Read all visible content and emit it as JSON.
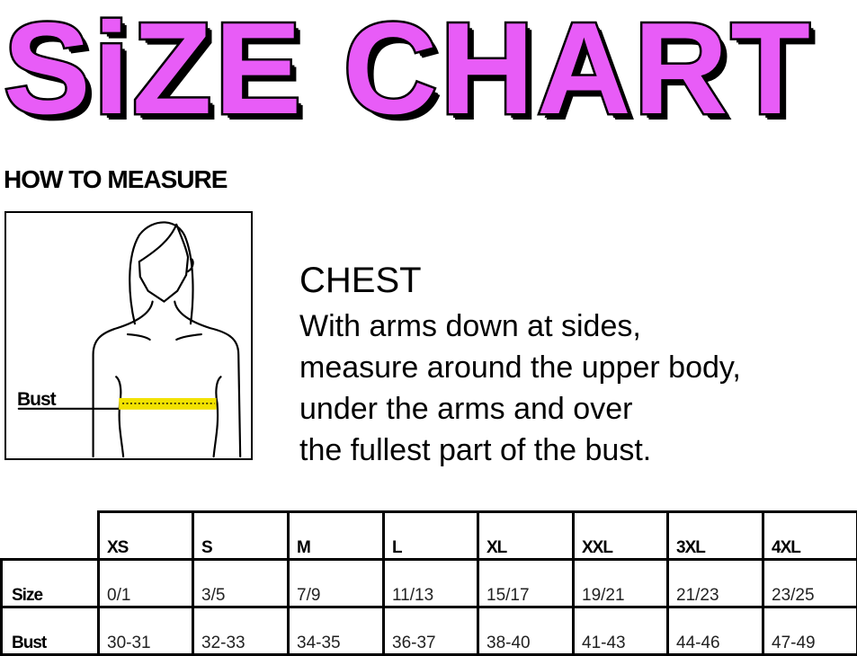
{
  "title": "SiZE CHART",
  "colors": {
    "title": "#e85cf7",
    "tape": "#f2e200"
  },
  "how_to_measure": "HOW TO MEASURE",
  "figure": {
    "label": "Bust"
  },
  "chest": {
    "title": "CHEST",
    "lines": [
      "With arms down at sides,",
      "measure around the upper body,",
      "under the arms and over",
      "the fullest part of the bust."
    ]
  },
  "table": {
    "columns": [
      "XS",
      "S",
      "M",
      "L",
      "XL",
      "XXL",
      "3XL",
      "4XL"
    ],
    "rows": [
      {
        "label": "Size",
        "values": [
          "0/1",
          "3/5",
          "7/9",
          "11/13",
          "15/17",
          "19/21",
          "21/23",
          "23/25"
        ]
      },
      {
        "label": "Bust",
        "values": [
          "30-31",
          "32-33",
          "34-35",
          "36-37",
          "38-40",
          "41-43",
          "44-46",
          "47-49"
        ]
      }
    ]
  }
}
